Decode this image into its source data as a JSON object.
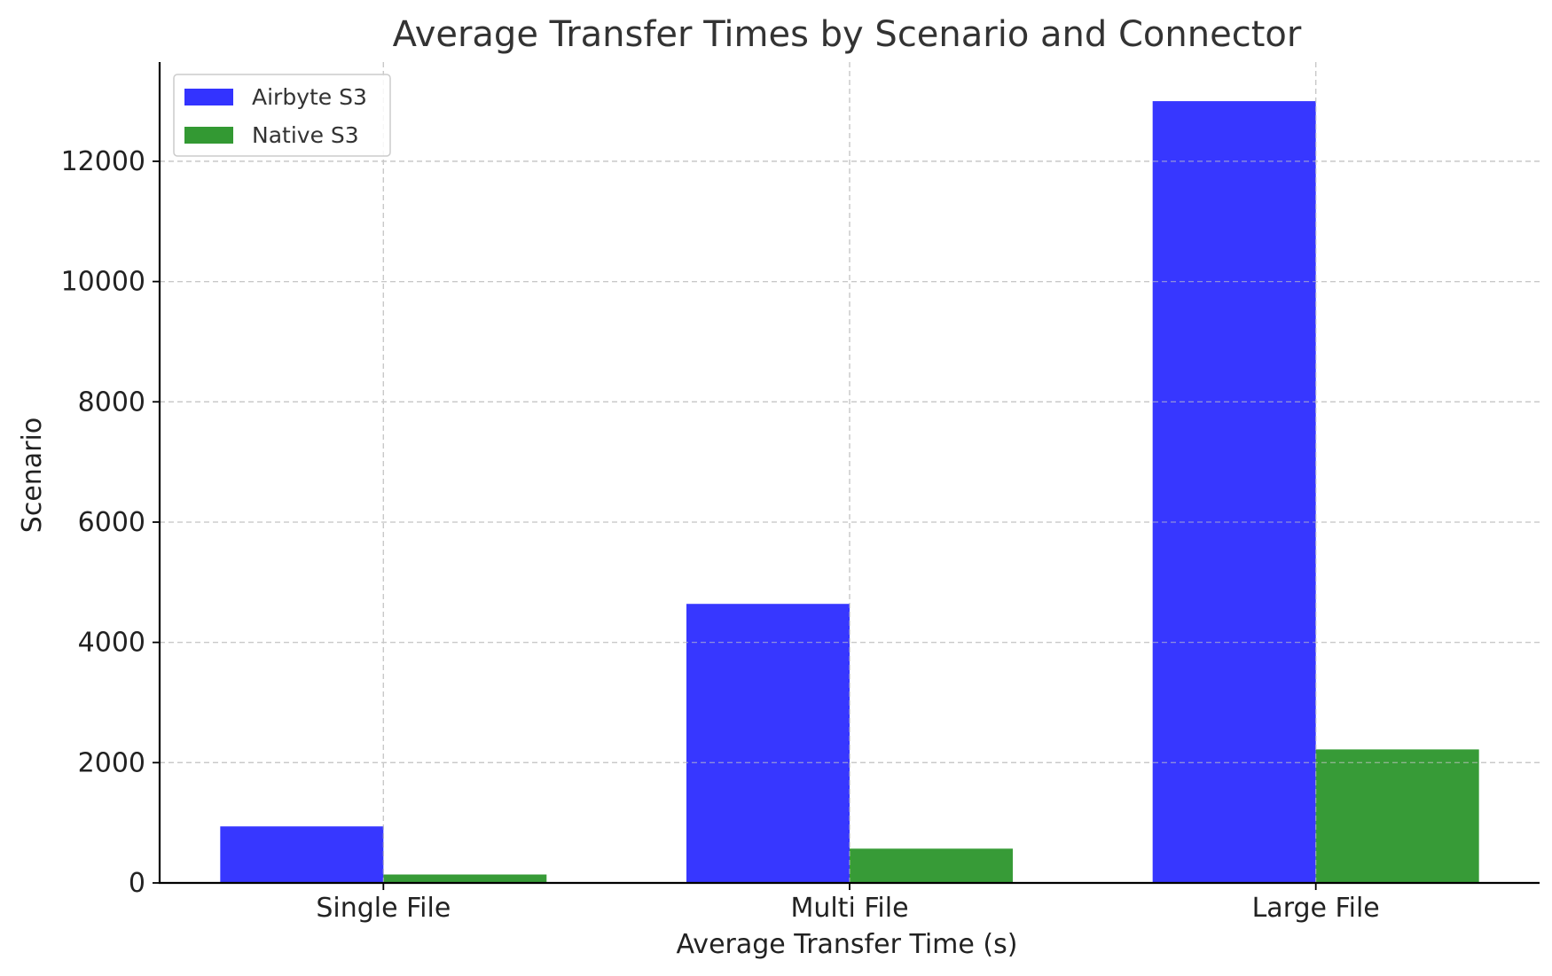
{
  "chart_data": {
    "type": "bar",
    "title": "Average Transfer Times by Scenario and Connector",
    "xlabel": "Average Transfer Time (s)",
    "ylabel": "Scenario",
    "categories": [
      "Single File",
      "Multi File",
      "Large File"
    ],
    "series": [
      {
        "name": "Airbyte S3",
        "values": [
          940,
          4640,
          13000
        ],
        "color": "#3333ff"
      },
      {
        "name": "Native S3",
        "values": [
          140,
          570,
          2220
        ],
        "color": "#339933"
      }
    ],
    "ylim": [
      0,
      13650
    ],
    "yticks": [
      0,
      2000,
      4000,
      6000,
      8000,
      10000,
      12000
    ],
    "ytick_labels": [
      "0",
      "2000",
      "4000",
      "6000",
      "8000",
      "10000",
      "12000"
    ],
    "grid": true,
    "legend_position": "top-left"
  }
}
